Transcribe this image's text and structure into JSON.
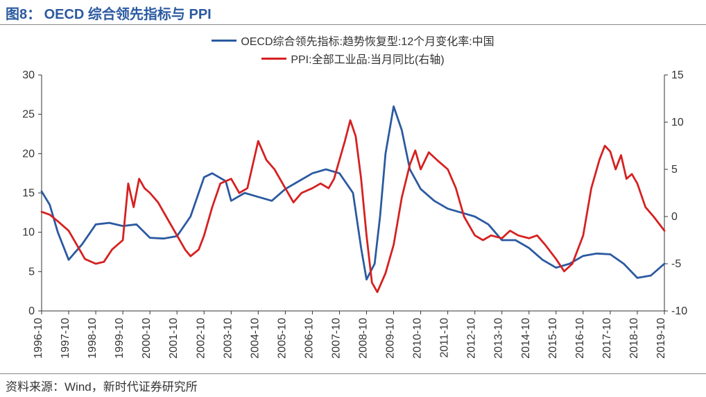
{
  "title": {
    "label": "图8：",
    "text": "OECD 综合领先指标与 PPI"
  },
  "source": "资料来源：Wind，新时代证券研究所",
  "chart": {
    "type": "line",
    "background_color": "#ffffff",
    "title_fontsize": 20,
    "title_color": "#2b5aa0",
    "axis_fontsize": 16,
    "axis_color": "#333333",
    "left_axis": {
      "min": 0,
      "max": 30,
      "step": 5
    },
    "right_axis": {
      "min": -10,
      "max": 15,
      "step": 5
    },
    "x_labels": [
      "1996-10",
      "1997-10",
      "1998-10",
      "1999-10",
      "2000-10",
      "2001-10",
      "2002-10",
      "2003-10",
      "2004-10",
      "2005-10",
      "2006-10",
      "2007-10",
      "2008-10",
      "2009-10",
      "2010-10",
      "2011-10",
      "2012-10",
      "2013-10",
      "2014-10",
      "2015-10",
      "2016-10",
      "2017-10",
      "2018-10",
      "2019-10"
    ],
    "series": [
      {
        "name": "OECD综合领先指标:趋势恢复型:12个月变化率:中国",
        "color": "#2b5aa0",
        "axis": "left",
        "line_width": 2.8,
        "points": [
          [
            0,
            15.2
          ],
          [
            0.3,
            13.5
          ],
          [
            0.6,
            10
          ],
          [
            1,
            6.5
          ],
          [
            1.5,
            8.5
          ],
          [
            2,
            11
          ],
          [
            2.5,
            11.2
          ],
          [
            3,
            10.8
          ],
          [
            3.5,
            11
          ],
          [
            4,
            9.3
          ],
          [
            4.5,
            9.2
          ],
          [
            5,
            9.5
          ],
          [
            5.5,
            12
          ],
          [
            6,
            17
          ],
          [
            6.3,
            17.5
          ],
          [
            6.8,
            16.5
          ],
          [
            7,
            14
          ],
          [
            7.5,
            15
          ],
          [
            8,
            14.5
          ],
          [
            8.5,
            14
          ],
          [
            9,
            15.5
          ],
          [
            9.5,
            16.5
          ],
          [
            10,
            17.5
          ],
          [
            10.5,
            18
          ],
          [
            11,
            17.5
          ],
          [
            11.5,
            15
          ],
          [
            11.8,
            8
          ],
          [
            12.0,
            4
          ],
          [
            12.3,
            6
          ],
          [
            12.5,
            12
          ],
          [
            12.7,
            20
          ],
          [
            13,
            26
          ],
          [
            13.3,
            23
          ],
          [
            13.6,
            18
          ],
          [
            14,
            15.5
          ],
          [
            14.5,
            14
          ],
          [
            15,
            13
          ],
          [
            15.5,
            12.5
          ],
          [
            16,
            12
          ],
          [
            16.5,
            11
          ],
          [
            17,
            9
          ],
          [
            17.5,
            9
          ],
          [
            18,
            8
          ],
          [
            18.5,
            6.5
          ],
          [
            19,
            5.5
          ],
          [
            19.5,
            6
          ],
          [
            20,
            7
          ],
          [
            20.5,
            7.3
          ],
          [
            21,
            7.2
          ],
          [
            21.5,
            6
          ],
          [
            22,
            4.2
          ],
          [
            22.5,
            4.5
          ],
          [
            23,
            6
          ]
        ]
      },
      {
        "name": "PPI:全部工业品:当月同比(右轴)",
        "color": "#d62020",
        "axis": "right",
        "line_width": 2.8,
        "points": [
          [
            0,
            0.5
          ],
          [
            0.3,
            0.2
          ],
          [
            0.6,
            -0.5
          ],
          [
            1,
            -1.5
          ],
          [
            1.3,
            -3
          ],
          [
            1.6,
            -4.5
          ],
          [
            2,
            -5
          ],
          [
            2.3,
            -4.8
          ],
          [
            2.6,
            -3.5
          ],
          [
            3,
            -2.5
          ],
          [
            3.2,
            3.5
          ],
          [
            3.4,
            1
          ],
          [
            3.6,
            4
          ],
          [
            3.8,
            3
          ],
          [
            4,
            2.5
          ],
          [
            4.3,
            1.5
          ],
          [
            4.6,
            0
          ],
          [
            5,
            -2
          ],
          [
            5.3,
            -3.5
          ],
          [
            5.5,
            -4.2
          ],
          [
            5.8,
            -3.5
          ],
          [
            6,
            -2
          ],
          [
            6.3,
            1
          ],
          [
            6.6,
            3.5
          ],
          [
            7,
            4
          ],
          [
            7.3,
            2.5
          ],
          [
            7.6,
            3
          ],
          [
            8,
            8
          ],
          [
            8.3,
            6
          ],
          [
            8.6,
            5
          ],
          [
            9,
            3
          ],
          [
            9.3,
            1.5
          ],
          [
            9.6,
            2.5
          ],
          [
            10,
            3
          ],
          [
            10.3,
            3.5
          ],
          [
            10.6,
            3
          ],
          [
            10.8,
            4
          ],
          [
            11,
            6
          ],
          [
            11.2,
            8
          ],
          [
            11.4,
            10.2
          ],
          [
            11.6,
            8.5
          ],
          [
            11.8,
            4
          ],
          [
            12,
            -2
          ],
          [
            12.2,
            -7
          ],
          [
            12.4,
            -8
          ],
          [
            12.7,
            -6
          ],
          [
            13,
            -3
          ],
          [
            13.3,
            2
          ],
          [
            13.6,
            5.5
          ],
          [
            13.8,
            7
          ],
          [
            14,
            5
          ],
          [
            14.3,
            6.8
          ],
          [
            14.6,
            6
          ],
          [
            15,
            5
          ],
          [
            15.3,
            3
          ],
          [
            15.6,
            0
          ],
          [
            16,
            -2
          ],
          [
            16.3,
            -2.5
          ],
          [
            16.6,
            -2
          ],
          [
            17,
            -2.3
          ],
          [
            17.3,
            -1.5
          ],
          [
            17.6,
            -2
          ],
          [
            18,
            -2.3
          ],
          [
            18.3,
            -2
          ],
          [
            18.6,
            -3
          ],
          [
            19,
            -4.5
          ],
          [
            19.3,
            -5.8
          ],
          [
            19.6,
            -5
          ],
          [
            20,
            -2
          ],
          [
            20.3,
            3
          ],
          [
            20.6,
            6
          ],
          [
            20.8,
            7.5
          ],
          [
            21,
            6.9
          ],
          [
            21.2,
            5
          ],
          [
            21.4,
            6.5
          ],
          [
            21.6,
            4
          ],
          [
            21.8,
            4.5
          ],
          [
            22,
            3.5
          ],
          [
            22.3,
            1
          ],
          [
            22.6,
            0
          ],
          [
            23,
            -1.5
          ]
        ]
      }
    ]
  }
}
